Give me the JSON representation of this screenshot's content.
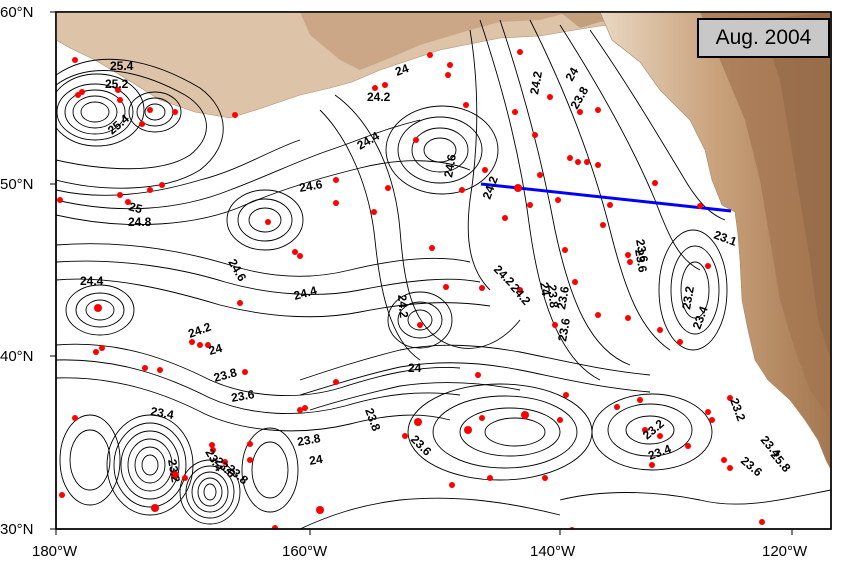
{
  "map": {
    "date_label": "Aug. 2004",
    "lat_labels": [
      "60°N",
      "50°N",
      "40°N",
      "30°N"
    ],
    "lon_labels": [
      "180°W",
      "160°W",
      "140°W",
      "120°W"
    ],
    "colors": {
      "ocean": "#ffffff",
      "land_low": "#ead7c2",
      "land_mid": "#c9a27c",
      "land_high": "#a4774f",
      "contour": "#000000",
      "stations": "#ff0000",
      "transect": "#0000ff"
    },
    "contour_labels": [
      "25.4",
      "25.2",
      "25",
      "25.4",
      "24",
      "24.2",
      "24.4",
      "24.6",
      "24.8",
      "24.6",
      "24.4",
      "24.2",
      "24.6",
      "24.2",
      "24",
      "23.8",
      "23.6",
      "24.2",
      "24.4",
      "24.2",
      "24",
      "24.2",
      "23.8",
      "23.6",
      "24.2",
      "24",
      "23.8",
      "23.6",
      "23.4",
      "23.2",
      "24",
      "23.8",
      "23.6",
      "23.8",
      "24",
      "23.6",
      "23.2",
      "23.4",
      "23.6",
      "23.4",
      "23.2",
      "23.4",
      "23.6",
      "23.8",
      "23.1",
      "23.2",
      "23.4",
      "23.6",
      "25.8"
    ]
  }
}
